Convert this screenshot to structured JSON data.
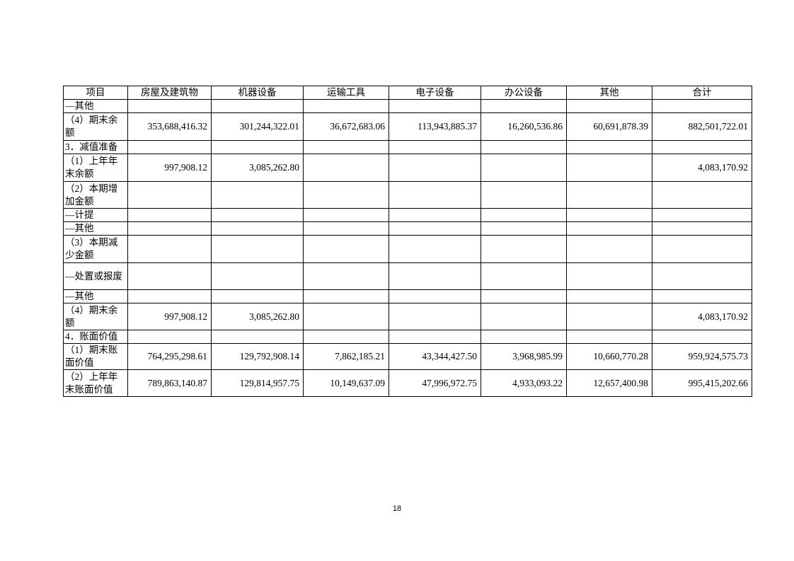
{
  "table": {
    "headers": [
      "项目",
      "房屋及建筑物",
      "机器设备",
      "运输工具",
      "电子设备",
      "办公设备",
      "其他",
      "合计"
    ],
    "rows": [
      [
        "—其他",
        "",
        "",
        "",
        "",
        "",
        "",
        ""
      ],
      [
        "（4）期末余额",
        "353,688,416.32",
        "301,244,322.01",
        "36,672,683.06",
        "113,943,885.37",
        "16,260,536.86",
        "60,691,878.39",
        "882,501,722.01"
      ],
      [
        "3．减值准备",
        "",
        "",
        "",
        "",
        "",
        "",
        ""
      ],
      [
        "（1）上年年末余额",
        "997,908.12",
        "3,085,262.80",
        "",
        "",
        "",
        "",
        "4,083,170.92"
      ],
      [
        "（2）本期增加金额",
        "",
        "",
        "",
        "",
        "",
        "",
        ""
      ],
      [
        "—计提",
        "",
        "",
        "",
        "",
        "",
        "",
        ""
      ],
      [
        "—其他",
        "",
        "",
        "",
        "",
        "",
        "",
        ""
      ],
      [
        "（3）本期减少金额",
        "",
        "",
        "",
        "",
        "",
        "",
        ""
      ],
      [
        "—处置或报废",
        "",
        "",
        "",
        "",
        "",
        "",
        ""
      ],
      [
        "—其他",
        "",
        "",
        "",
        "",
        "",
        "",
        ""
      ],
      [
        "（4）期末余额",
        "997,908.12",
        "3,085,262.80",
        "",
        "",
        "",
        "",
        "4,083,170.92"
      ],
      [
        "4．账面价值",
        "",
        "",
        "",
        "",
        "",
        "",
        ""
      ],
      [
        "（1）期末账面价值",
        "764,295,298.61",
        "129,792,908.14",
        "7,862,185.21",
        "43,344,427.50",
        "3,968,985.99",
        "10,660,770.28",
        "959,924,575.73"
      ],
      [
        "（2）上年年末账面价值",
        "789,863,140.87",
        "129,814,957.75",
        "10,149,637.09",
        "47,996,972.75",
        "4,933,093.22",
        "12,657,400.98",
        "995,415,202.66"
      ]
    ]
  },
  "page_number": "18"
}
